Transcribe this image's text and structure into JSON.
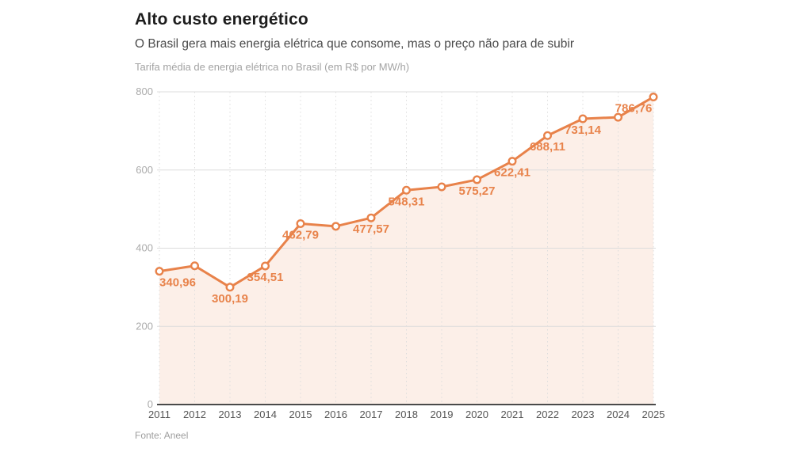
{
  "chart_data": {
    "type": "line",
    "title": "Alto custo energético",
    "subtitle": "O Brasil gera mais energia elétrica que consome, mas o preço não para de subir",
    "caption": "Tarifa média de energia elétrica no Brasil (em R$ por MW/h)",
    "source": "Fonte: Aneel",
    "categories": [
      "2011",
      "2012",
      "2013",
      "2014",
      "2015",
      "2016",
      "2017",
      "2018",
      "2019",
      "2020",
      "2021",
      "2022",
      "2023",
      "2024",
      "2025"
    ],
    "values": [
      340.96,
      355,
      300.19,
      354.51,
      462.79,
      456,
      477.57,
      548.31,
      557,
      575.27,
      622.41,
      688.11,
      731.14,
      735,
      786.76
    ],
    "point_labels": [
      "340,96",
      "",
      "300,19",
      "354,51",
      "462,79",
      "",
      "477,57",
      "548,31",
      "",
      "575,27",
      "622,41",
      "688,11",
      "731,14",
      "",
      "786;76"
    ],
    "label_dx": [
      23,
      0,
      0,
      0,
      0,
      0,
      0,
      0,
      0,
      0,
      0,
      0,
      0,
      0,
      -25
    ],
    "label_dy": 19,
    "xlabel": "",
    "ylabel": "",
    "ylim": [
      0,
      800
    ],
    "yticks": [
      "0",
      "200",
      "400",
      "600",
      "800"
    ],
    "legend": "none",
    "grid": {
      "horizontal": "solid",
      "vertical": "dotted"
    },
    "colors": {
      "line": "#e8824a",
      "marker_fill": "#ffffff",
      "area_fill": "#fcefe8",
      "point_label": "#e8834b",
      "grid_line": "#dcdcdc",
      "axis_line": "#4a4a4a",
      "ytick_text": "#ababab",
      "xtick_text": "#555555"
    }
  }
}
